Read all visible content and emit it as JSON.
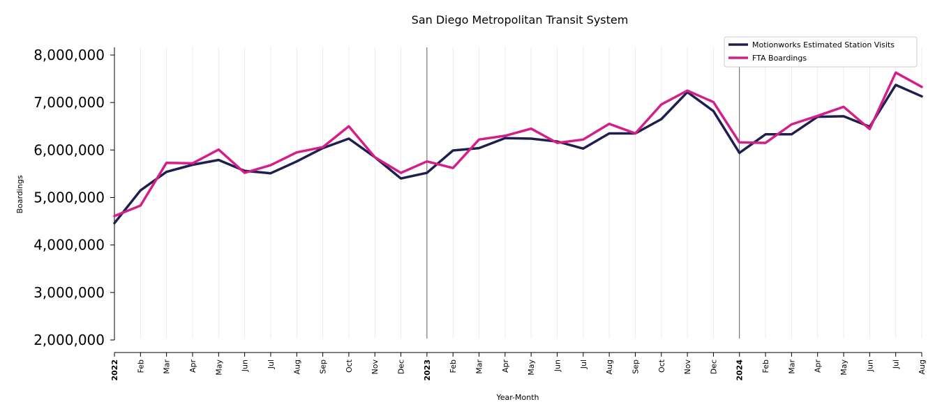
{
  "chart_data": {
    "type": "line",
    "title": "San Diego Metropolitan Transit System",
    "xlabel": "Year-Month",
    "ylabel": "Boardings",
    "ylim": [
      2000000,
      8000000
    ],
    "yticks": [
      2000000,
      3000000,
      4000000,
      5000000,
      6000000,
      7000000,
      8000000
    ],
    "ytick_labels": [
      "2,000,000",
      "3,000,000",
      "4,000,000",
      "5,000,000",
      "6,000,000",
      "7,000,000",
      "8,000,000"
    ],
    "categories": [
      "2022",
      "Feb",
      "Mar",
      "Apr",
      "May",
      "Jun",
      "Jul",
      "Aug",
      "Sep",
      "Oct",
      "Nov",
      "Dec",
      "2023",
      "Feb",
      "Mar",
      "Apr",
      "May",
      "Jun",
      "Jul",
      "Aug",
      "Sep",
      "Oct",
      "Nov",
      "Dec",
      "2024",
      "Feb",
      "Mar",
      "Apr",
      "May",
      "Jun",
      "Jul",
      "Aug"
    ],
    "year_labels": [
      "2022",
      "2023",
      "2024"
    ],
    "grid": "vertical",
    "legend_position": "top-right",
    "series": [
      {
        "name": "Motionworks Estimated Station Visits",
        "color": "#1f1f4f",
        "values": [
          4460000,
          5150000,
          5540000,
          5690000,
          5790000,
          5560000,
          5510000,
          5760000,
          6040000,
          6240000,
          5850000,
          5400000,
          5520000,
          5990000,
          6040000,
          6250000,
          6240000,
          6180000,
          6030000,
          6350000,
          6350000,
          6650000,
          7220000,
          6820000,
          5940000,
          6330000,
          6330000,
          6700000,
          6710000,
          6490000,
          7370000,
          7130000
        ]
      },
      {
        "name": "FTA Boardings",
        "color": "#d41f8b",
        "values": [
          4610000,
          4830000,
          5730000,
          5720000,
          6010000,
          5520000,
          5680000,
          5950000,
          6060000,
          6500000,
          5850000,
          5520000,
          5760000,
          5620000,
          6220000,
          6300000,
          6450000,
          6150000,
          6220000,
          6550000,
          6350000,
          6960000,
          7250000,
          7010000,
          6160000,
          6150000,
          6540000,
          6720000,
          6910000,
          6440000,
          7630000,
          7330000
        ]
      }
    ]
  }
}
